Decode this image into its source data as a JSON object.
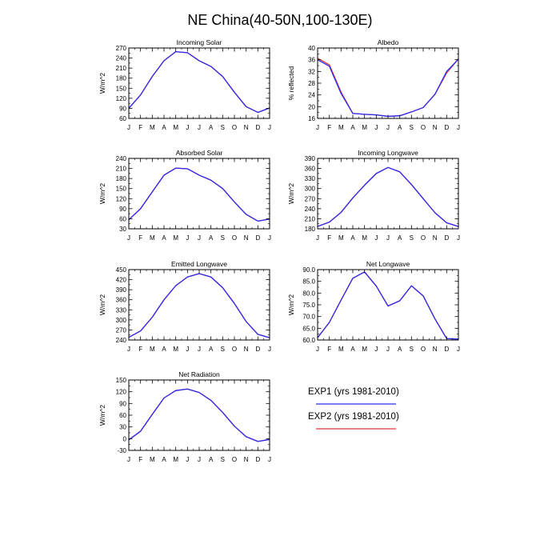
{
  "title": "NE China(40-50N,100-130E)",
  "months": [
    "J",
    "F",
    "M",
    "A",
    "M",
    "J",
    "J",
    "A",
    "S",
    "O",
    "N",
    "D",
    "J"
  ],
  "colors": {
    "exp1": "#2a2af0",
    "exp2": "#e23a3a",
    "axis": "#000000"
  },
  "legend": [
    {
      "label": "EXP1 (yrs 1981-2010)",
      "color": "#2a2af0"
    },
    {
      "label": "EXP2 (yrs 1981-2010)",
      "color": "#e23a3a"
    }
  ],
  "chart_data": [
    {
      "type": "line",
      "title": "Incoming Solar",
      "ylabel": "W/m^2",
      "ylim": [
        60,
        270
      ],
      "yticks": [
        "60",
        "90",
        "120",
        "150",
        "180",
        "210",
        "240",
        "270"
      ],
      "series": [
        {
          "name": "EXP1 (yrs 1981-2010)",
          "values": [
            90,
            130,
            185,
            232,
            259,
            256,
            232,
            215,
            185,
            138,
            95,
            78,
            91
          ]
        },
        {
          "name": "EXP2 (yrs 1981-2010)",
          "values": [
            90,
            130,
            185,
            232,
            259,
            256,
            232,
            215,
            185,
            138,
            95,
            78,
            91
          ]
        }
      ]
    },
    {
      "type": "line",
      "title": "Albedo",
      "ylabel": "% reflected",
      "ylim": [
        16,
        40
      ],
      "yticks": [
        "16",
        "20",
        "24",
        "28",
        "32",
        "36",
        "40"
      ],
      "series": [
        {
          "name": "EXP1 (yrs 1981-2010)",
          "values": [
            36,
            33.8,
            24.5,
            17.7,
            17.4,
            17.2,
            16.7,
            16.9,
            18.2,
            19.7,
            24.2,
            32.0,
            36.2
          ]
        },
        {
          "name": "EXP2 (yrs 1981-2010)",
          "values": [
            36.5,
            34.3,
            25.0,
            17.7,
            17.4,
            17.2,
            16.7,
            16.9,
            18.2,
            19.7,
            24.2,
            31.5,
            36.3
          ]
        }
      ]
    },
    {
      "type": "line",
      "title": "Absorbed Solar",
      "ylabel": "W/m^2",
      "ylim": [
        30,
        240
      ],
      "yticks": [
        "30",
        "60",
        "90",
        "120",
        "150",
        "180",
        "210",
        "240"
      ],
      "series": [
        {
          "name": "EXP1 (yrs 1981-2010)",
          "values": [
            57,
            90,
            140,
            190,
            211,
            209,
            190,
            175,
            150,
            110,
            73,
            53,
            59
          ]
        },
        {
          "name": "EXP2 (yrs 1981-2010)",
          "values": [
            57,
            90,
            140,
            190,
            211,
            209,
            190,
            175,
            150,
            110,
            73,
            53,
            59
          ]
        }
      ]
    },
    {
      "type": "line",
      "title": "Incoming Longwave",
      "ylabel": "W/m^2",
      "ylim": [
        180,
        390
      ],
      "yticks": [
        "180",
        "210",
        "240",
        "270",
        "300",
        "330",
        "360",
        "390"
      ],
      "series": [
        {
          "name": "EXP1 (yrs 1981-2010)",
          "values": [
            187,
            200,
            229,
            272,
            310,
            345,
            363,
            350,
            312,
            270,
            228,
            198,
            187
          ]
        },
        {
          "name": "EXP2 (yrs 1981-2010)",
          "values": [
            187,
            200,
            229,
            272,
            310,
            345,
            363,
            350,
            312,
            270,
            228,
            198,
            187
          ]
        }
      ]
    },
    {
      "type": "line",
      "title": "Emitted Longwave",
      "ylabel": "W/m^2",
      "ylim": [
        240,
        450
      ],
      "yticks": [
        "240",
        "270",
        "300",
        "330",
        "360",
        "390",
        "420",
        "450"
      ],
      "series": [
        {
          "name": "EXP1 (yrs 1981-2010)",
          "values": [
            248,
            267,
            308,
            360,
            402,
            428,
            438,
            428,
            396,
            349,
            295,
            257,
            247
          ]
        },
        {
          "name": "EXP2 (yrs 1981-2010)",
          "values": [
            248,
            267,
            308,
            360,
            402,
            428,
            438,
            428,
            396,
            349,
            295,
            257,
            247
          ]
        }
      ]
    },
    {
      "type": "line",
      "title": "Net Longwave",
      "ylabel": "W/m^2",
      "ylim": [
        60,
        90
      ],
      "yticks": [
        "60.0",
        "65.0",
        "70.0",
        "75.0",
        "80.0",
        "85.0",
        "90.0"
      ],
      "series": [
        {
          "name": "EXP1 (yrs 1981-2010)",
          "values": [
            61,
            67.5,
            77,
            86.3,
            89,
            83,
            74.5,
            76.7,
            83.1,
            78.8,
            69,
            60.6,
            60.4
          ]
        },
        {
          "name": "EXP2 (yrs 1981-2010)",
          "values": [
            61,
            67.5,
            77,
            86.3,
            89,
            83,
            74.5,
            76.7,
            83.1,
            78.8,
            69,
            60.6,
            60.4
          ]
        }
      ]
    },
    {
      "type": "line",
      "title": "Net Radiation",
      "ylabel": "W/m^2",
      "ylim": [
        -30,
        150
      ],
      "yticks": [
        "-30",
        "0",
        "30",
        "60",
        "90",
        "120",
        "150"
      ],
      "series": [
        {
          "name": "EXP1 (yrs 1981-2010)",
          "values": [
            -3,
            19,
            62,
            104,
            123,
            127,
            118,
            98,
            67,
            32,
            5,
            -7,
            -2
          ]
        },
        {
          "name": "EXP2 (yrs 1981-2010)",
          "values": [
            -3,
            19,
            62,
            104,
            123,
            127,
            118,
            98,
            67,
            32,
            5,
            -7,
            -2
          ]
        }
      ]
    }
  ]
}
